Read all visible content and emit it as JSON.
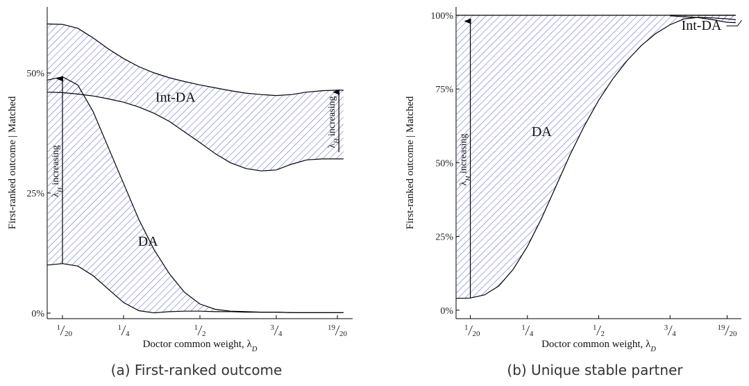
{
  "figure": {
    "caption_a": "(a) First-ranked outcome",
    "caption_b": "(b) Unique stable partner"
  },
  "colors": {
    "hatch": "#5b63d6",
    "line": "#000000"
  },
  "chart_data": [
    {
      "type": "area",
      "title": "",
      "caption": "(a) First-ranked outcome",
      "xlabel": "Doctor common weight, λ_D",
      "ylabel": "First-ranked outcome | Matched",
      "x_ticks": [
        {
          "value": 0.05,
          "num": "1",
          "den": "20"
        },
        {
          "value": 0.25,
          "num": "1",
          "den": "4"
        },
        {
          "value": 0.5,
          "num": "1",
          "den": "2"
        },
        {
          "value": 0.75,
          "num": "3",
          "den": "4"
        },
        {
          "value": 0.95,
          "num": "19",
          "den": "20"
        }
      ],
      "y_ticks": [
        0,
        25,
        50
      ],
      "y_tick_labels": [
        "0%",
        "25%",
        "50%"
      ],
      "xlim": [
        0.0,
        1.0
      ],
      "ylim": [
        0,
        62
      ],
      "grid": false,
      "series": [
        {
          "name": "Int-DA",
          "x": [
            0.0,
            0.05,
            0.1,
            0.15,
            0.2,
            0.25,
            0.3,
            0.35,
            0.4,
            0.45,
            0.5,
            0.55,
            0.6,
            0.65,
            0.7,
            0.75,
            0.8,
            0.85,
            0.9,
            0.95,
            0.97
          ],
          "upper": [
            60.2,
            60.1,
            59.3,
            57.3,
            55.0,
            53.0,
            51.3,
            50.0,
            49.0,
            48.2,
            47.5,
            46.9,
            46.3,
            45.8,
            45.5,
            45.3,
            45.5,
            46.0,
            46.3,
            46.4,
            46.4
          ],
          "lower": [
            46.0,
            45.9,
            45.6,
            45.2,
            44.6,
            43.9,
            42.9,
            41.6,
            39.9,
            37.7,
            35.5,
            33.2,
            31.3,
            30.1,
            29.6,
            29.8,
            31.0,
            31.9,
            32.1,
            32.1,
            32.1
          ]
        },
        {
          "name": "DA",
          "x": [
            0.0,
            0.05,
            0.1,
            0.15,
            0.2,
            0.25,
            0.3,
            0.35,
            0.4,
            0.45,
            0.5,
            0.55,
            0.6,
            0.65,
            0.7,
            0.75,
            0.8,
            0.85,
            0.9,
            0.95,
            0.97
          ],
          "upper": [
            48.5,
            49.2,
            47.5,
            42.0,
            34.5,
            27.0,
            19.5,
            13.2,
            8.2,
            4.3,
            1.9,
            0.8,
            0.4,
            0.3,
            0.2,
            0.2,
            0.1,
            0.1,
            0.1,
            0.1,
            0.1
          ],
          "lower": [
            10.0,
            10.3,
            9.8,
            7.8,
            5.0,
            2.2,
            0.5,
            0.05,
            0.3,
            0.4,
            0.4,
            0.3,
            0.3,
            0.2,
            0.2,
            0.2,
            0.1,
            0.1,
            0.1,
            0.1,
            0.1
          ]
        }
      ],
      "annotations": [
        {
          "text": "Int-DA",
          "x": 0.42,
          "y": 44
        },
        {
          "text": "DA",
          "x": 0.33,
          "y": 14
        },
        {
          "text": "λ_H increasing",
          "from": {
            "x": 0.05,
            "y": 10.3
          },
          "to": {
            "x": 0.05,
            "y": 48.8
          }
        },
        {
          "text": "λ_H increasing",
          "from": {
            "x": 0.955,
            "y": 33.5
          },
          "to": {
            "x": 0.955,
            "y": 46.0
          }
        }
      ]
    },
    {
      "type": "area",
      "title": "",
      "caption": "(b) Unique stable partner",
      "xlabel": "Doctor common weight, λ_D",
      "ylabel": "First-ranked outcome | Matched",
      "x_ticks": [
        {
          "value": 0.05,
          "num": "1",
          "den": "20"
        },
        {
          "value": 0.25,
          "num": "1",
          "den": "4"
        },
        {
          "value": 0.5,
          "num": "1",
          "den": "2"
        },
        {
          "value": 0.75,
          "num": "3",
          "den": "4"
        },
        {
          "value": 0.95,
          "num": "19",
          "den": "20"
        }
      ],
      "y_ticks": [
        0,
        25,
        50,
        75,
        100
      ],
      "y_tick_labels": [
        "0%",
        "25%",
        "50%",
        "75%",
        "100%"
      ],
      "xlim": [
        0.0,
        1.0
      ],
      "ylim": [
        -1,
        100
      ],
      "grid": false,
      "series": [
        {
          "name": "DA",
          "x": [
            0.0,
            0.05,
            0.1,
            0.15,
            0.2,
            0.25,
            0.3,
            0.35,
            0.4,
            0.45,
            0.5,
            0.55,
            0.6,
            0.65,
            0.7,
            0.75,
            0.8,
            0.85,
            0.9,
            0.95,
            0.98
          ],
          "upper": [
            100,
            100,
            100,
            100,
            100,
            100,
            100,
            100,
            100,
            100,
            100,
            100,
            100,
            100,
            100,
            100,
            100,
            100,
            100,
            100,
            100
          ],
          "lower": [
            4.0,
            4.1,
            5.2,
            8.2,
            13.8,
            21.6,
            31.2,
            42.0,
            52.8,
            62.6,
            71.2,
            78.5,
            84.7,
            89.8,
            93.8,
            96.8,
            98.8,
            99.3,
            99.1,
            98.8,
            98.5
          ]
        },
        {
          "name": "Int-DA",
          "x": [
            0.75,
            0.8,
            0.85,
            0.9,
            0.95,
            0.98
          ],
          "upper": [
            100,
            100,
            100,
            100,
            100,
            100
          ],
          "lower": [
            99.8,
            99.5,
            99.2,
            98.5,
            97.6,
            97.5
          ]
        }
      ],
      "annotations": [
        {
          "text": "DA",
          "x": 0.3,
          "y": 59
        },
        {
          "text": "Int-DA",
          "x": 0.86,
          "y": 95
        },
        {
          "text": "λ_H increasing",
          "from": {
            "x": 0.05,
            "y": 4.1
          },
          "to": {
            "x": 0.05,
            "y": 98.0
          }
        }
      ]
    }
  ]
}
